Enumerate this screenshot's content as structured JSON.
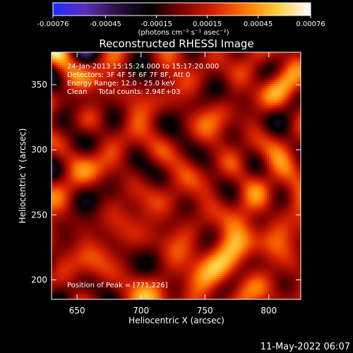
{
  "colorbar": {
    "ticks": [
      "-0.00076",
      "-0.00045",
      "-0.00015",
      "0.00015",
      "0.00045",
      "0.00076"
    ],
    "tick_values": [
      -0.00076,
      -0.00045,
      -0.00015,
      0.00015,
      0.00045,
      0.00076
    ],
    "units": "(photons cm⁻² s⁻¹ asec⁻²)",
    "colormap_stops": [
      "#1a2cff",
      "#5a2fb8",
      "#2b1040",
      "#000000",
      "#7a0000",
      "#d62000",
      "#ff7a00",
      "#ffd040",
      "#ffffff"
    ]
  },
  "annotations": {
    "time": "24-Jan-2013 15:15:24.000 to 15:17:20.000",
    "detectors": "Detectors: 3F 4F 5F 6F 7F 8F, Att 0",
    "energy": "Energy Range: 12.0 - 25.0 keV",
    "method": "Clean     Total counts: 2.94E+03",
    "peak": "Position of Peak = [771,226]"
  },
  "footer": {
    "date": "11-May-2022 06:07"
  },
  "chart_data": {
    "type": "heatmap",
    "title": "Reconstructed RHESSI Image",
    "xlabel": "Heliocentric X (arcsec)",
    "ylabel": "Heliocentric Y (arcsec)",
    "xlim": [
      630,
      825
    ],
    "ylim": [
      185,
      375
    ],
    "xticks": [
      650,
      700,
      750,
      800
    ],
    "yticks": [
      200,
      250,
      300,
      350
    ],
    "xtick_labels": [
      "650",
      "700",
      "750",
      "800"
    ],
    "ytick_labels": [
      "200",
      "250",
      "300",
      "350"
    ],
    "value_range": [
      -0.00076,
      0.00076
    ],
    "peak_position": [
      771,
      226
    ],
    "grid": false
  }
}
